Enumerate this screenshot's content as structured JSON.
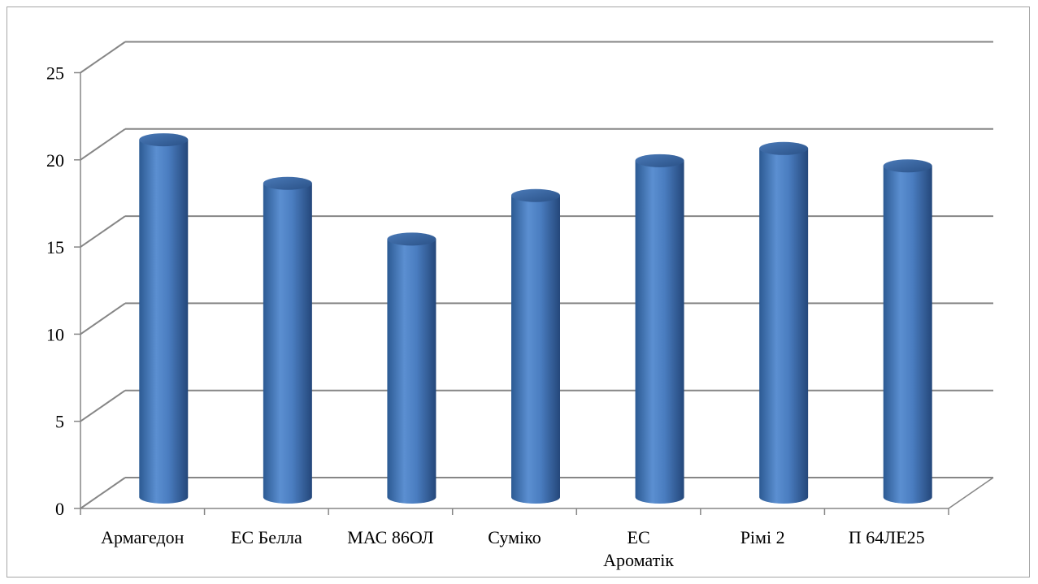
{
  "chart_data": {
    "type": "bar",
    "style": "3d-cylinder",
    "categories": [
      [
        "Армагедон"
      ],
      [
        "ЕС Белла"
      ],
      [
        "МАС 86ОЛ"
      ],
      [
        "Суміко"
      ],
      [
        "ЕС",
        "Ароматік"
      ],
      [
        "Рімі 2"
      ],
      [
        "П 64ЛЕ25"
      ]
    ],
    "values": [
      20.5,
      18,
      14.8,
      17.3,
      19.3,
      20,
      19
    ],
    "ylim": [
      0,
      25
    ],
    "yticks": [
      0,
      5,
      10,
      15,
      20,
      25
    ],
    "grid": true,
    "legend": "none",
    "bar_color": "#4f81bd",
    "bar_dark_color": "#2a5187",
    "grid_color": "#868686"
  }
}
